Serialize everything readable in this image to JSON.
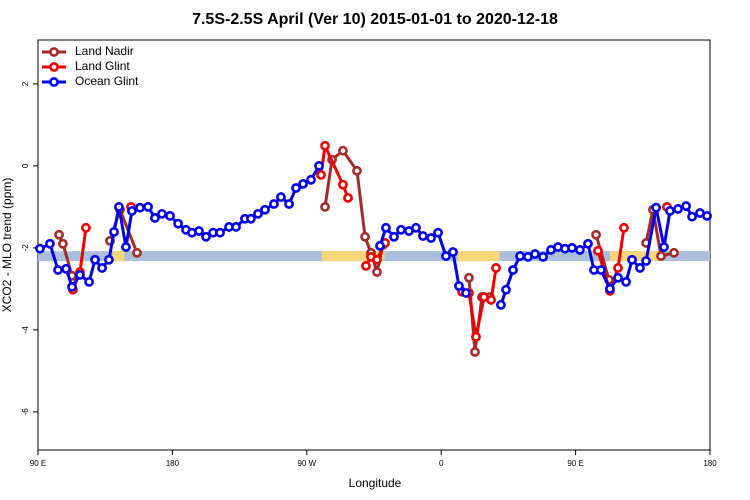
{
  "chart_data": {
    "type": "line",
    "title": "7.5S-2.5S April (Ver 10)   2015-01-01 to 2020-12-18",
    "x_label": "Longitude",
    "y_label": "XCO2 - MLO trend (ppm)",
    "xlim": [
      90,
      540
    ],
    "ylim": [
      -6.93,
      3.07
    ],
    "xticks": [
      {
        "value": 90,
        "label": "90 E"
      },
      180,
      {
        "value": 270,
        "label": "90 W"
      },
      0,
      {
        "value": 450,
        "label": "90 E"
      },
      {
        "value": 540,
        "label": "180"
      }
    ],
    "yticks": [
      -6,
      -4,
      -2,
      0,
      2
    ],
    "legend": "topleft",
    "band": {
      "y": -2.2,
      "color": "#a9bfdc",
      "highlight_color": "#f7d67a",
      "highlights": [
        [
          140,
          148
        ],
        [
          280,
          322
        ],
        [
          371,
          399
        ],
        [
          473,
          506
        ]
      ]
    },
    "series": [
      {
        "name": "Land Nadir",
        "color": "#a52a2a",
        "x": [
          104.1,
          106.7,
          112.8,
          null,
          138.2,
          144.9,
          156.3,
          null,
          282.2,
          286.9,
          294.2,
          303.6,
          309.0,
          313.0,
          317.0,
          321.0,
          null,
          378.6,
          382.6,
          387.3,
          392.7,
          null,
          463.7,
          472.4,
          null,
          497.2,
          501.8,
          507.2,
          515.9
        ],
        "values": [
          -1.68,
          -1.9,
          -2.68,
          null,
          -1.83,
          -1.07,
          -2.12,
          null,
          -1.0,
          0.15,
          0.37,
          -0.12,
          -1.73,
          -2.12,
          -2.59,
          -1.93,
          null,
          -2.73,
          -4.54,
          -3.2,
          -3.2,
          null,
          -1.68,
          -2.78,
          null,
          -1.88,
          -1.07,
          -2.2,
          -2.12
        ]
      },
      {
        "name": "Land Glint",
        "color": "#ee0000",
        "x": [
          113.4,
          118.1,
          122.1,
          null,
          152.3,
          null,
          279.5,
          282.2,
          294.2,
          297.6,
          null,
          309.6,
          313.0,
          317.0,
          322.4,
          null,
          374.0,
          378.6,
          383.3,
          388.7,
          393.4,
          396.7,
          null,
          465.0,
          473.0,
          478.4,
          482.4,
          null,
          511.2
        ],
        "values": [
          -3.02,
          -2.59,
          -1.51,
          null,
          -1.0,
          null,
          -0.22,
          0.49,
          -0.46,
          -0.78,
          null,
          -2.44,
          -2.22,
          -2.29,
          -1.88,
          null,
          -3.07,
          -3.1,
          -4.17,
          -3.2,
          -3.27,
          -2.49,
          null,
          -2.07,
          -3.05,
          -2.49,
          -1.51,
          null,
          -1.0
        ]
      },
      {
        "name": "Ocean Glint",
        "color": "#0000ee",
        "x": [
          91.3,
          98.0,
          103.4,
          108.8,
          112.8,
          118.1,
          124.2,
          128.2,
          132.9,
          137.5,
          140.9,
          144.2,
          148.9,
          152.9,
          158.3,
          163.7,
          168.3,
          173.0,
          178.4,
          183.8,
          189.1,
          193.1,
          197.8,
          202.5,
          207.2,
          211.9,
          217.9,
          222.6,
          228.6,
          232.6,
          237.3,
          242.0,
          248.0,
          252.7,
          258.1,
          262.8,
          267.5,
          272.8,
          278.2,
          null,
          319.0,
          323.0,
          328.4,
          333.1,
          338.4,
          343.1,
          347.8,
          353.2,
          357.9,
          363.2,
          367.9,
          371.9,
          376.6,
          null,
          400.0,
          403.4,
          408.1,
          412.8,
          418.1,
          422.8,
          428.2,
          433.5,
          438.2,
          442.9,
          447.6,
          452.9,
          458.3,
          462.3,
          467.0,
          473.0,
          478.4,
          483.8,
          487.8,
          493.1,
          497.2,
          503.9,
          509.2,
          513.2,
          518.6,
          524.0,
          528.0,
          533.3,
          538.0
        ],
        "values": [
          -2.02,
          -1.9,
          -2.54,
          -2.51,
          -2.95,
          -2.66,
          -2.83,
          -2.29,
          -2.49,
          -2.29,
          -1.61,
          -1.0,
          -1.98,
          -1.1,
          -1.02,
          -1.0,
          -1.27,
          -1.17,
          -1.22,
          -1.41,
          -1.56,
          -1.63,
          -1.59,
          -1.73,
          -1.63,
          -1.63,
          -1.49,
          -1.49,
          -1.29,
          -1.29,
          -1.17,
          -1.07,
          -0.93,
          -0.76,
          -0.93,
          -0.54,
          -0.44,
          -0.34,
          0.0,
          null,
          -1.95,
          -1.51,
          -1.73,
          -1.56,
          -1.59,
          -1.51,
          -1.71,
          -1.76,
          -1.63,
          -2.2,
          -2.1,
          -2.93,
          -3.1,
          null,
          -3.39,
          -3.02,
          -2.54,
          -2.2,
          -2.22,
          -2.15,
          -2.22,
          -2.05,
          -1.98,
          -2.02,
          -2.0,
          -2.05,
          -1.9,
          -2.54,
          -2.54,
          -3.0,
          -2.73,
          -2.83,
          -2.29,
          -2.49,
          -2.32,
          -1.02,
          -1.98,
          -1.1,
          -1.05,
          -0.98,
          -1.24,
          -1.15,
          -1.22
        ]
      }
    ]
  }
}
